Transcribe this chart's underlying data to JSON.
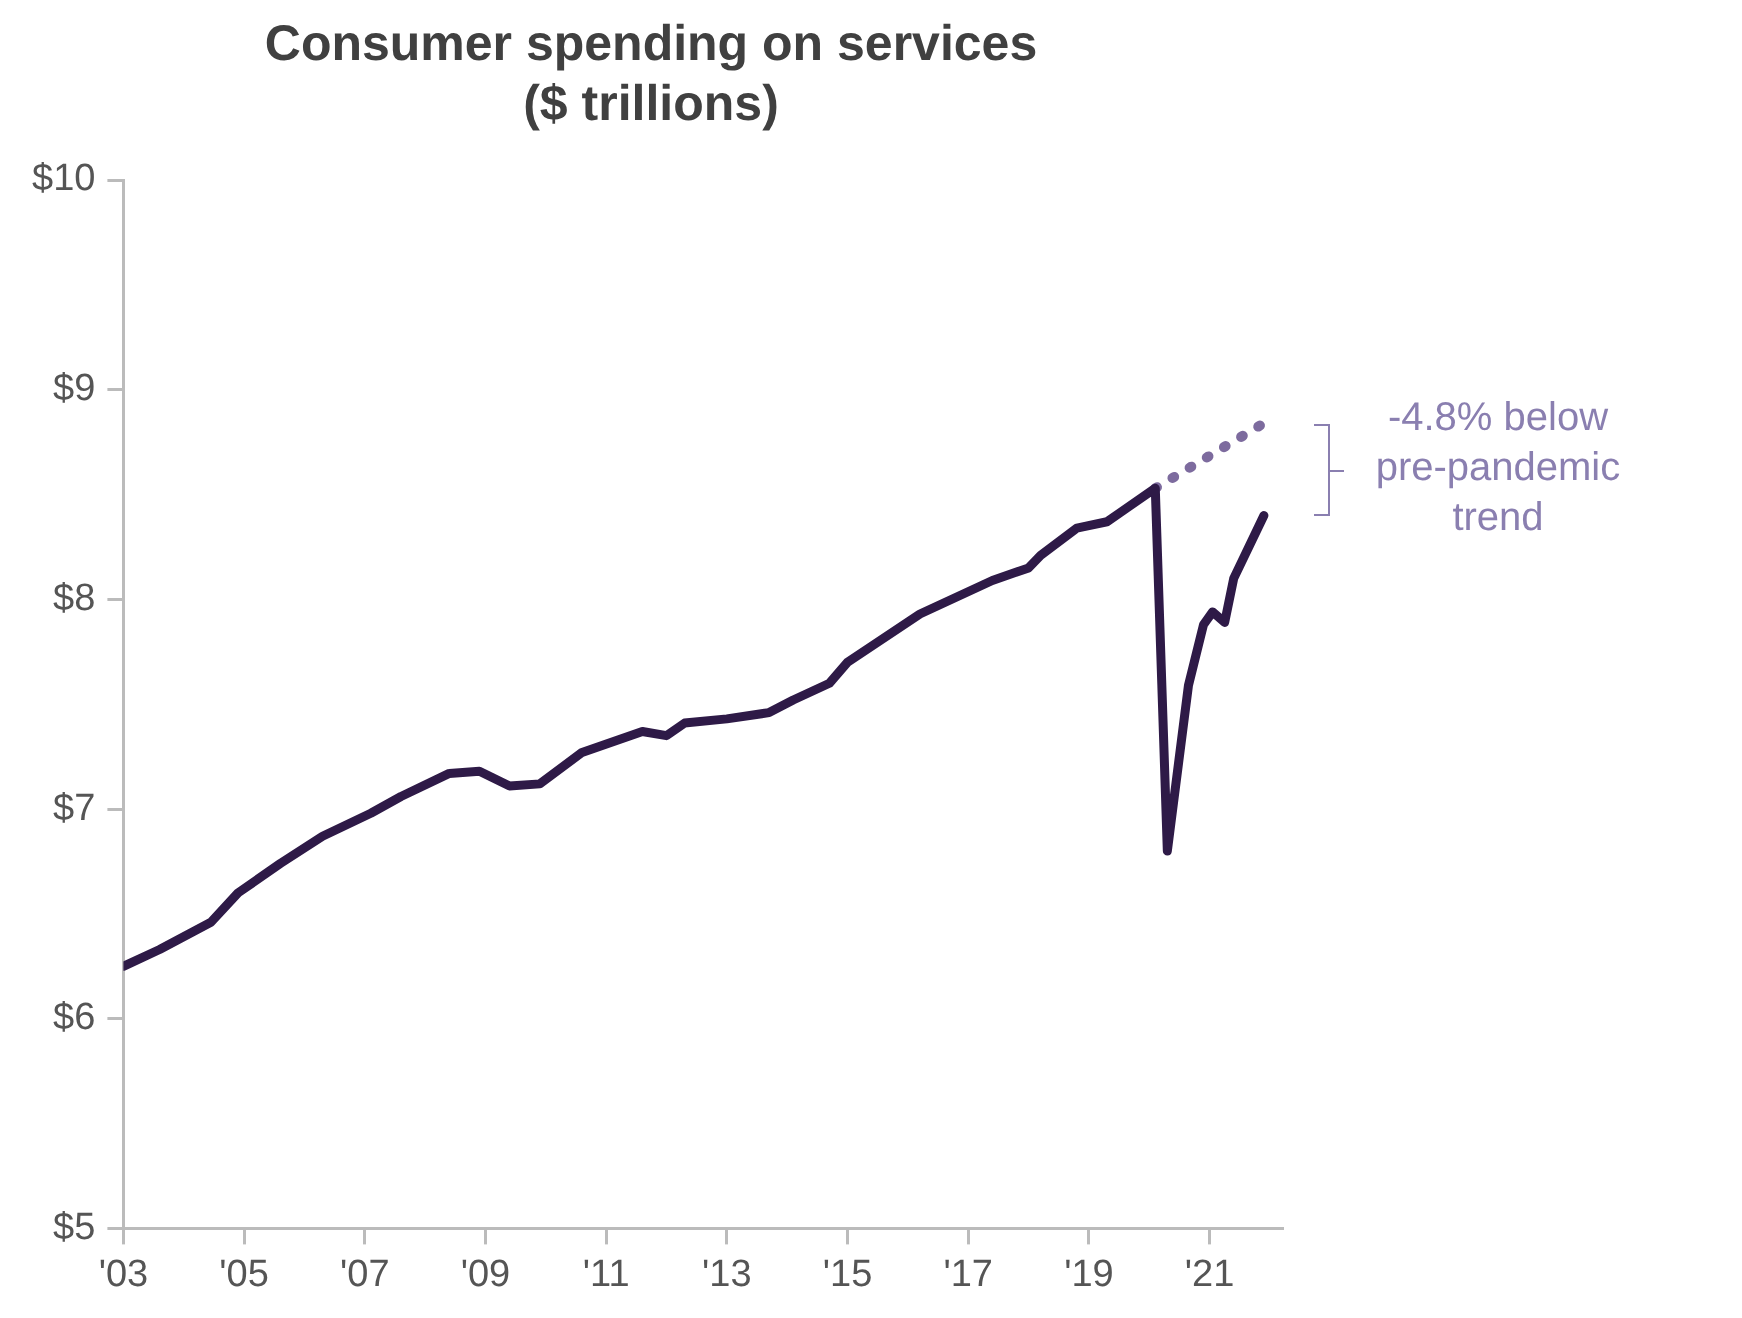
{
  "chart_data": {
    "type": "line",
    "title": "Consumer spending on services",
    "subtitle": "($ trillions)",
    "series": [
      {
        "color": "#2e1a47",
        "x": [
          2003.0,
          2003.6,
          2004.45,
          2004.9,
          2005.6,
          2006.3,
          2007.1,
          2007.6,
          2008.4,
          2008.9,
          2009.4,
          2009.9,
          2010.6,
          2011.6,
          2012.0,
          2012.3,
          2013.0,
          2013.7,
          2014.1,
          2014.7,
          2015.0,
          2016.2,
          2017.4,
          2018.0,
          2018.2,
          2018.8,
          2019.3,
          2020.1,
          2020.3,
          2020.65,
          2020.9,
          2021.05,
          2021.25,
          2021.4,
          2021.9
        ],
        "values": [
          6.25,
          6.33,
          6.46,
          6.6,
          6.74,
          6.87,
          6.98,
          7.06,
          7.17,
          7.18,
          7.11,
          7.12,
          7.27,
          7.37,
          7.35,
          7.41,
          7.43,
          7.46,
          7.52,
          7.6,
          7.7,
          7.93,
          8.09,
          8.15,
          8.21,
          8.34,
          8.37,
          8.53,
          6.8,
          7.59,
          7.88,
          7.94,
          7.89,
          8.1,
          8.4
        ]
      },
      {
        "color": "#7d6b9e",
        "line_style": "dotted",
        "x": [
          2020.1,
          2021.9
        ],
        "values": [
          8.53,
          8.84
        ]
      }
    ],
    "xlim": [
      2003,
      2022.2
    ],
    "xticks": [
      {
        "value": 2003,
        "label": "'03"
      },
      {
        "value": 2005,
        "label": "'05"
      },
      {
        "value": 2007,
        "label": "'07"
      },
      {
        "value": 2009,
        "label": "'09"
      },
      {
        "value": 2011,
        "label": "'11"
      },
      {
        "value": 2013,
        "label": "'13"
      },
      {
        "value": 2015,
        "label": "'15"
      },
      {
        "value": 2017,
        "label": "'17"
      },
      {
        "value": 2019,
        "label": "'19"
      },
      {
        "value": 2021,
        "label": "'21"
      }
    ],
    "ylim": [
      5,
      10
    ],
    "yticks": [
      {
        "value": 5,
        "label": "$5"
      },
      {
        "value": 6,
        "label": "$6"
      },
      {
        "value": 7,
        "label": "$7"
      },
      {
        "value": 8,
        "label": "$8"
      },
      {
        "value": 9,
        "label": "$9"
      },
      {
        "value": 10,
        "label": "$10"
      }
    ],
    "annotations": [
      "-4.8% below pre-pandemic trend"
    ],
    "grid": false,
    "legend": false,
    "marker": "none",
    "line_style": "solid"
  }
}
